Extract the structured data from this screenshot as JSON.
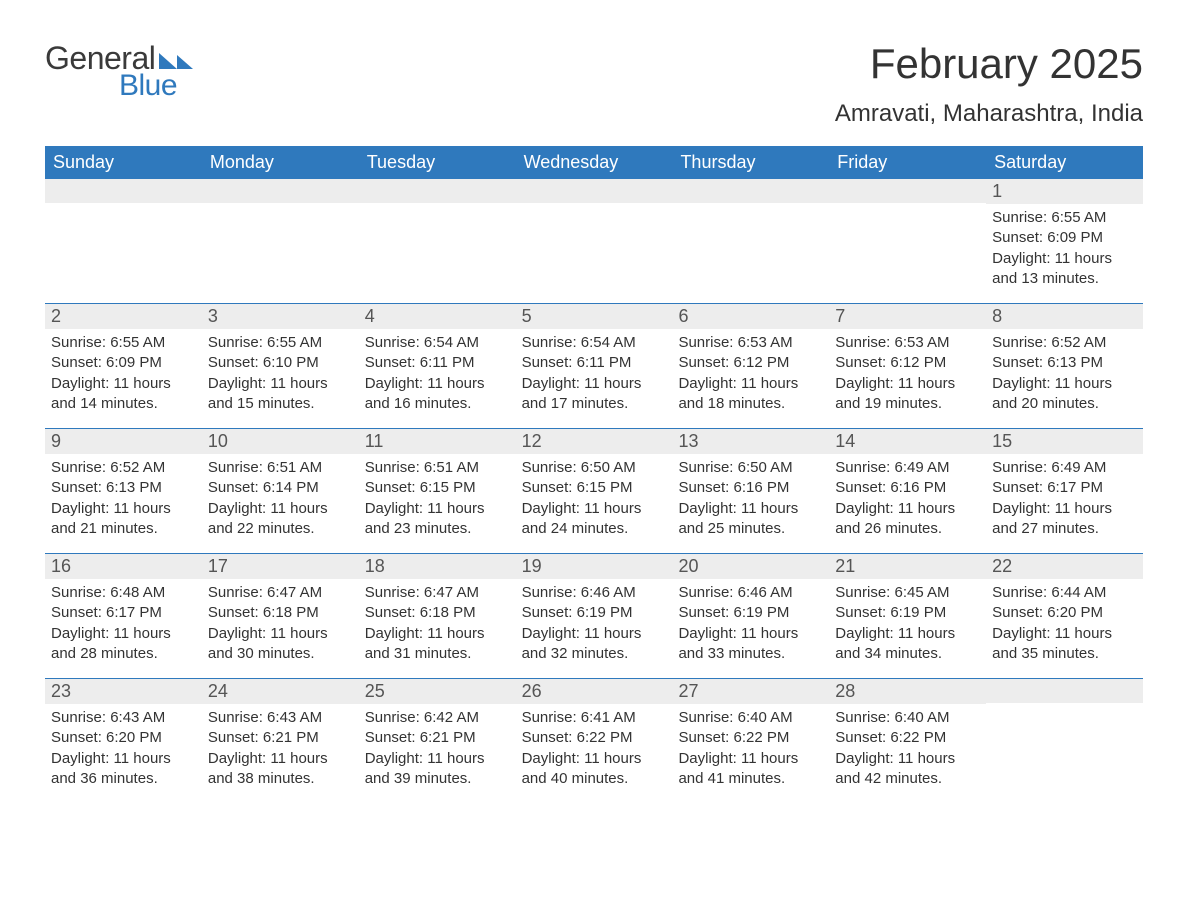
{
  "brand": {
    "word1": "General",
    "word2": "Blue",
    "accent_color": "#2f79bd",
    "text_color": "#3a3a3a"
  },
  "title": "February 2025",
  "location": "Amravati, Maharashtra, India",
  "colors": {
    "header_bg": "#2f79bd",
    "header_fg": "#ffffff",
    "daynum_bg": "#ededed",
    "week_divider": "#2f79bd",
    "body_text": "#333333",
    "page_bg": "#ffffff"
  },
  "typography": {
    "title_fontsize": 42,
    "location_fontsize": 24,
    "weekday_fontsize": 18,
    "daynum_fontsize": 18,
    "body_fontsize": 15
  },
  "weekdays": [
    "Sunday",
    "Monday",
    "Tuesday",
    "Wednesday",
    "Thursday",
    "Friday",
    "Saturday"
  ],
  "weeks": [
    [
      {
        "blank": true
      },
      {
        "blank": true
      },
      {
        "blank": true
      },
      {
        "blank": true
      },
      {
        "blank": true
      },
      {
        "blank": true
      },
      {
        "day": "1",
        "sunrise": "Sunrise: 6:55 AM",
        "sunset": "Sunset: 6:09 PM",
        "daylight": "Daylight: 11 hours and 13 minutes."
      }
    ],
    [
      {
        "day": "2",
        "sunrise": "Sunrise: 6:55 AM",
        "sunset": "Sunset: 6:09 PM",
        "daylight": "Daylight: 11 hours and 14 minutes."
      },
      {
        "day": "3",
        "sunrise": "Sunrise: 6:55 AM",
        "sunset": "Sunset: 6:10 PM",
        "daylight": "Daylight: 11 hours and 15 minutes."
      },
      {
        "day": "4",
        "sunrise": "Sunrise: 6:54 AM",
        "sunset": "Sunset: 6:11 PM",
        "daylight": "Daylight: 11 hours and 16 minutes."
      },
      {
        "day": "5",
        "sunrise": "Sunrise: 6:54 AM",
        "sunset": "Sunset: 6:11 PM",
        "daylight": "Daylight: 11 hours and 17 minutes."
      },
      {
        "day": "6",
        "sunrise": "Sunrise: 6:53 AM",
        "sunset": "Sunset: 6:12 PM",
        "daylight": "Daylight: 11 hours and 18 minutes."
      },
      {
        "day": "7",
        "sunrise": "Sunrise: 6:53 AM",
        "sunset": "Sunset: 6:12 PM",
        "daylight": "Daylight: 11 hours and 19 minutes."
      },
      {
        "day": "8",
        "sunrise": "Sunrise: 6:52 AM",
        "sunset": "Sunset: 6:13 PM",
        "daylight": "Daylight: 11 hours and 20 minutes."
      }
    ],
    [
      {
        "day": "9",
        "sunrise": "Sunrise: 6:52 AM",
        "sunset": "Sunset: 6:13 PM",
        "daylight": "Daylight: 11 hours and 21 minutes."
      },
      {
        "day": "10",
        "sunrise": "Sunrise: 6:51 AM",
        "sunset": "Sunset: 6:14 PM",
        "daylight": "Daylight: 11 hours and 22 minutes."
      },
      {
        "day": "11",
        "sunrise": "Sunrise: 6:51 AM",
        "sunset": "Sunset: 6:15 PM",
        "daylight": "Daylight: 11 hours and 23 minutes."
      },
      {
        "day": "12",
        "sunrise": "Sunrise: 6:50 AM",
        "sunset": "Sunset: 6:15 PM",
        "daylight": "Daylight: 11 hours and 24 minutes."
      },
      {
        "day": "13",
        "sunrise": "Sunrise: 6:50 AM",
        "sunset": "Sunset: 6:16 PM",
        "daylight": "Daylight: 11 hours and 25 minutes."
      },
      {
        "day": "14",
        "sunrise": "Sunrise: 6:49 AM",
        "sunset": "Sunset: 6:16 PM",
        "daylight": "Daylight: 11 hours and 26 minutes."
      },
      {
        "day": "15",
        "sunrise": "Sunrise: 6:49 AM",
        "sunset": "Sunset: 6:17 PM",
        "daylight": "Daylight: 11 hours and 27 minutes."
      }
    ],
    [
      {
        "day": "16",
        "sunrise": "Sunrise: 6:48 AM",
        "sunset": "Sunset: 6:17 PM",
        "daylight": "Daylight: 11 hours and 28 minutes."
      },
      {
        "day": "17",
        "sunrise": "Sunrise: 6:47 AM",
        "sunset": "Sunset: 6:18 PM",
        "daylight": "Daylight: 11 hours and 30 minutes."
      },
      {
        "day": "18",
        "sunrise": "Sunrise: 6:47 AM",
        "sunset": "Sunset: 6:18 PM",
        "daylight": "Daylight: 11 hours and 31 minutes."
      },
      {
        "day": "19",
        "sunrise": "Sunrise: 6:46 AM",
        "sunset": "Sunset: 6:19 PM",
        "daylight": "Daylight: 11 hours and 32 minutes."
      },
      {
        "day": "20",
        "sunrise": "Sunrise: 6:46 AM",
        "sunset": "Sunset: 6:19 PM",
        "daylight": "Daylight: 11 hours and 33 minutes."
      },
      {
        "day": "21",
        "sunrise": "Sunrise: 6:45 AM",
        "sunset": "Sunset: 6:19 PM",
        "daylight": "Daylight: 11 hours and 34 minutes."
      },
      {
        "day": "22",
        "sunrise": "Sunrise: 6:44 AM",
        "sunset": "Sunset: 6:20 PM",
        "daylight": "Daylight: 11 hours and 35 minutes."
      }
    ],
    [
      {
        "day": "23",
        "sunrise": "Sunrise: 6:43 AM",
        "sunset": "Sunset: 6:20 PM",
        "daylight": "Daylight: 11 hours and 36 minutes."
      },
      {
        "day": "24",
        "sunrise": "Sunrise: 6:43 AM",
        "sunset": "Sunset: 6:21 PM",
        "daylight": "Daylight: 11 hours and 38 minutes."
      },
      {
        "day": "25",
        "sunrise": "Sunrise: 6:42 AM",
        "sunset": "Sunset: 6:21 PM",
        "daylight": "Daylight: 11 hours and 39 minutes."
      },
      {
        "day": "26",
        "sunrise": "Sunrise: 6:41 AM",
        "sunset": "Sunset: 6:22 PM",
        "daylight": "Daylight: 11 hours and 40 minutes."
      },
      {
        "day": "27",
        "sunrise": "Sunrise: 6:40 AM",
        "sunset": "Sunset: 6:22 PM",
        "daylight": "Daylight: 11 hours and 41 minutes."
      },
      {
        "day": "28",
        "sunrise": "Sunrise: 6:40 AM",
        "sunset": "Sunset: 6:22 PM",
        "daylight": "Daylight: 11 hours and 42 minutes."
      },
      {
        "blank": true
      }
    ]
  ]
}
